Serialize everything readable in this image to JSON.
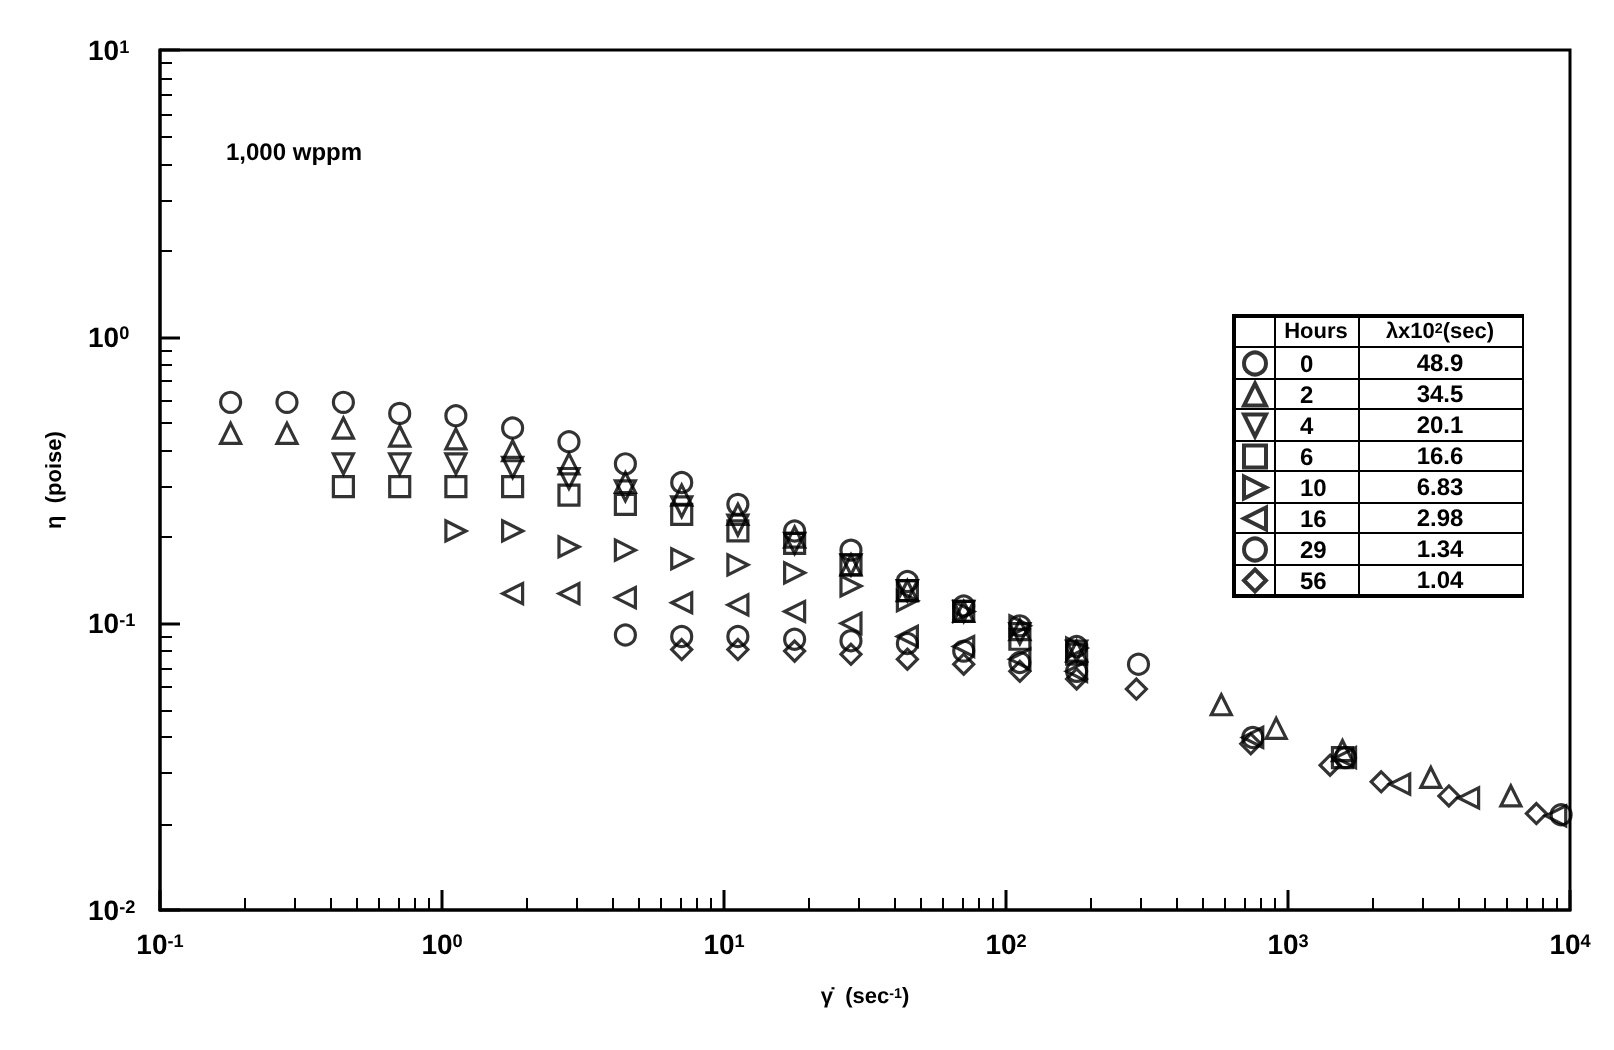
{
  "chart_data": {
    "type": "scatter",
    "xlabel": "γ̇  (sec$^{-1}$)",
    "ylabel": "η  (poise)",
    "log": "xy",
    "legend": "right",
    "legend_title": "Hours",
    "grid": false,
    "annotations": [
      "1,000 wppm",
      "λx10$^{2}$(sec)",
      "48.9",
      "34.5",
      "20.1",
      "16.6",
      "6.83",
      "2.98",
      "1.34",
      "1.04"
    ],
    "xlim": [
      0.1,
      10000
    ],
    "xticks": [
      {
        "value": 0.1,
        "label": "10$^{-1}$"
      },
      {
        "value": 1,
        "label": "10$^{0}$"
      },
      {
        "value": 10,
        "label": "10$^{1}$"
      },
      {
        "value": 100,
        "label": "10$^{2}$"
      },
      {
        "value": 1000,
        "label": "10$^{3}$"
      },
      {
        "value": 10000,
        "label": "10$^{4}$"
      }
    ],
    "ylim": [
      0.01,
      10
    ],
    "yticks": [
      {
        "value": 0.01,
        "label": "10$^{-2}$"
      },
      {
        "value": 0.1,
        "label": "10$^{-1}$"
      },
      {
        "value": 1,
        "label": "10$^{0}$"
      },
      {
        "value": 10,
        "label": "10$^{1}$"
      }
    ],
    "series": [
      {
        "name": "0",
        "color": "#000000",
        "marker": "circle",
        "x": [
          0.178,
          0.282,
          0.447,
          0.708,
          1.12,
          1.78,
          2.82,
          4.47,
          7.08,
          11.2,
          17.8,
          28.2,
          44.7,
          70.8,
          112,
          178,
          295
        ],
        "values": [
          0.59,
          0.59,
          0.59,
          0.54,
          0.53,
          0.48,
          0.43,
          0.36,
          0.31,
          0.26,
          0.21,
          0.18,
          0.14,
          0.115,
          0.098,
          0.083,
          0.072
        ]
      },
      {
        "name": "2",
        "color": "#000000",
        "marker": "triangle",
        "x": [
          0.178,
          0.282,
          0.447,
          0.708,
          1.12,
          1.78,
          2.82,
          4.47,
          7.08,
          11.2,
          17.8,
          28.2,
          44.7,
          70.8,
          112,
          178,
          580,
          908,
          1560,
          3210,
          6170
        ],
        "values": [
          0.46,
          0.46,
          0.48,
          0.45,
          0.44,
          0.4,
          0.36,
          0.31,
          0.28,
          0.24,
          0.2,
          0.16,
          0.13,
          0.11,
          0.095,
          0.08,
          0.052,
          0.043,
          0.036,
          0.029,
          0.025
        ]
      },
      {
        "name": "4",
        "color": "#000000",
        "marker": "triangle-down",
        "x": [
          0.447,
          0.708,
          1.12,
          1.78,
          2.82,
          4.47,
          7.08,
          11.2,
          17.8,
          28.2,
          44.7,
          70.8,
          112,
          178
        ],
        "values": [
          0.36,
          0.36,
          0.36,
          0.35,
          0.32,
          0.29,
          0.255,
          0.22,
          0.19,
          0.16,
          0.13,
          0.11,
          0.092,
          0.08
        ]
      },
      {
        "name": "6",
        "color": "#000000",
        "marker": "square",
        "x": [
          0.447,
          0.708,
          1.12,
          1.78,
          2.82,
          4.47,
          7.08,
          11.2,
          17.8,
          28.2,
          44.7,
          70.8,
          112,
          178,
          1560
        ],
        "values": [
          0.3,
          0.3,
          0.3,
          0.3,
          0.28,
          0.26,
          0.24,
          0.21,
          0.19,
          0.16,
          0.13,
          0.11,
          0.088,
          0.078,
          0.034
        ]
      },
      {
        "name": "10",
        "color": "#000000",
        "marker": "triangle-right",
        "x": [
          1.12,
          1.78,
          2.82,
          4.47,
          7.08,
          11.2,
          17.8,
          28.2,
          44.7,
          70.8,
          112,
          178
        ],
        "values": [
          0.21,
          0.21,
          0.185,
          0.18,
          0.168,
          0.16,
          0.15,
          0.135,
          0.12,
          0.11,
          0.098,
          0.082
        ]
      },
      {
        "name": "16",
        "color": "#000000",
        "marker": "triangle-left",
        "x": [
          1.78,
          2.82,
          4.47,
          7.08,
          11.2,
          17.8,
          28.2,
          44.7,
          70.8,
          112,
          178,
          750,
          1600,
          2490,
          4370,
          8900
        ],
        "values": [
          0.127,
          0.127,
          0.123,
          0.118,
          0.116,
          0.11,
          0.1,
          0.09,
          0.083,
          0.075,
          0.068,
          0.04,
          0.034,
          0.0275,
          0.0246,
          0.0213
        ]
      },
      {
        "name": "29",
        "color": "#000000",
        "marker": "circle",
        "x": [
          4.47,
          7.08,
          11.2,
          17.8,
          28.2,
          44.7,
          70.8,
          112,
          178,
          750,
          1600,
          9300
        ],
        "values": [
          0.091,
          0.09,
          0.09,
          0.088,
          0.087,
          0.085,
          0.08,
          0.073,
          0.068,
          0.04,
          0.034,
          0.0215
        ]
      },
      {
        "name": "56",
        "color": "#000000",
        "marker": "diamond",
        "x": [
          7.08,
          11.2,
          17.8,
          28.2,
          44.7,
          70.8,
          112,
          178,
          290,
          738,
          1410,
          2140,
          3720,
          7600
        ],
        "values": [
          0.081,
          0.081,
          0.08,
          0.078,
          0.075,
          0.072,
          0.068,
          0.064,
          0.059,
          0.038,
          0.032,
          0.028,
          0.025,
          0.0217
        ]
      }
    ]
  }
}
